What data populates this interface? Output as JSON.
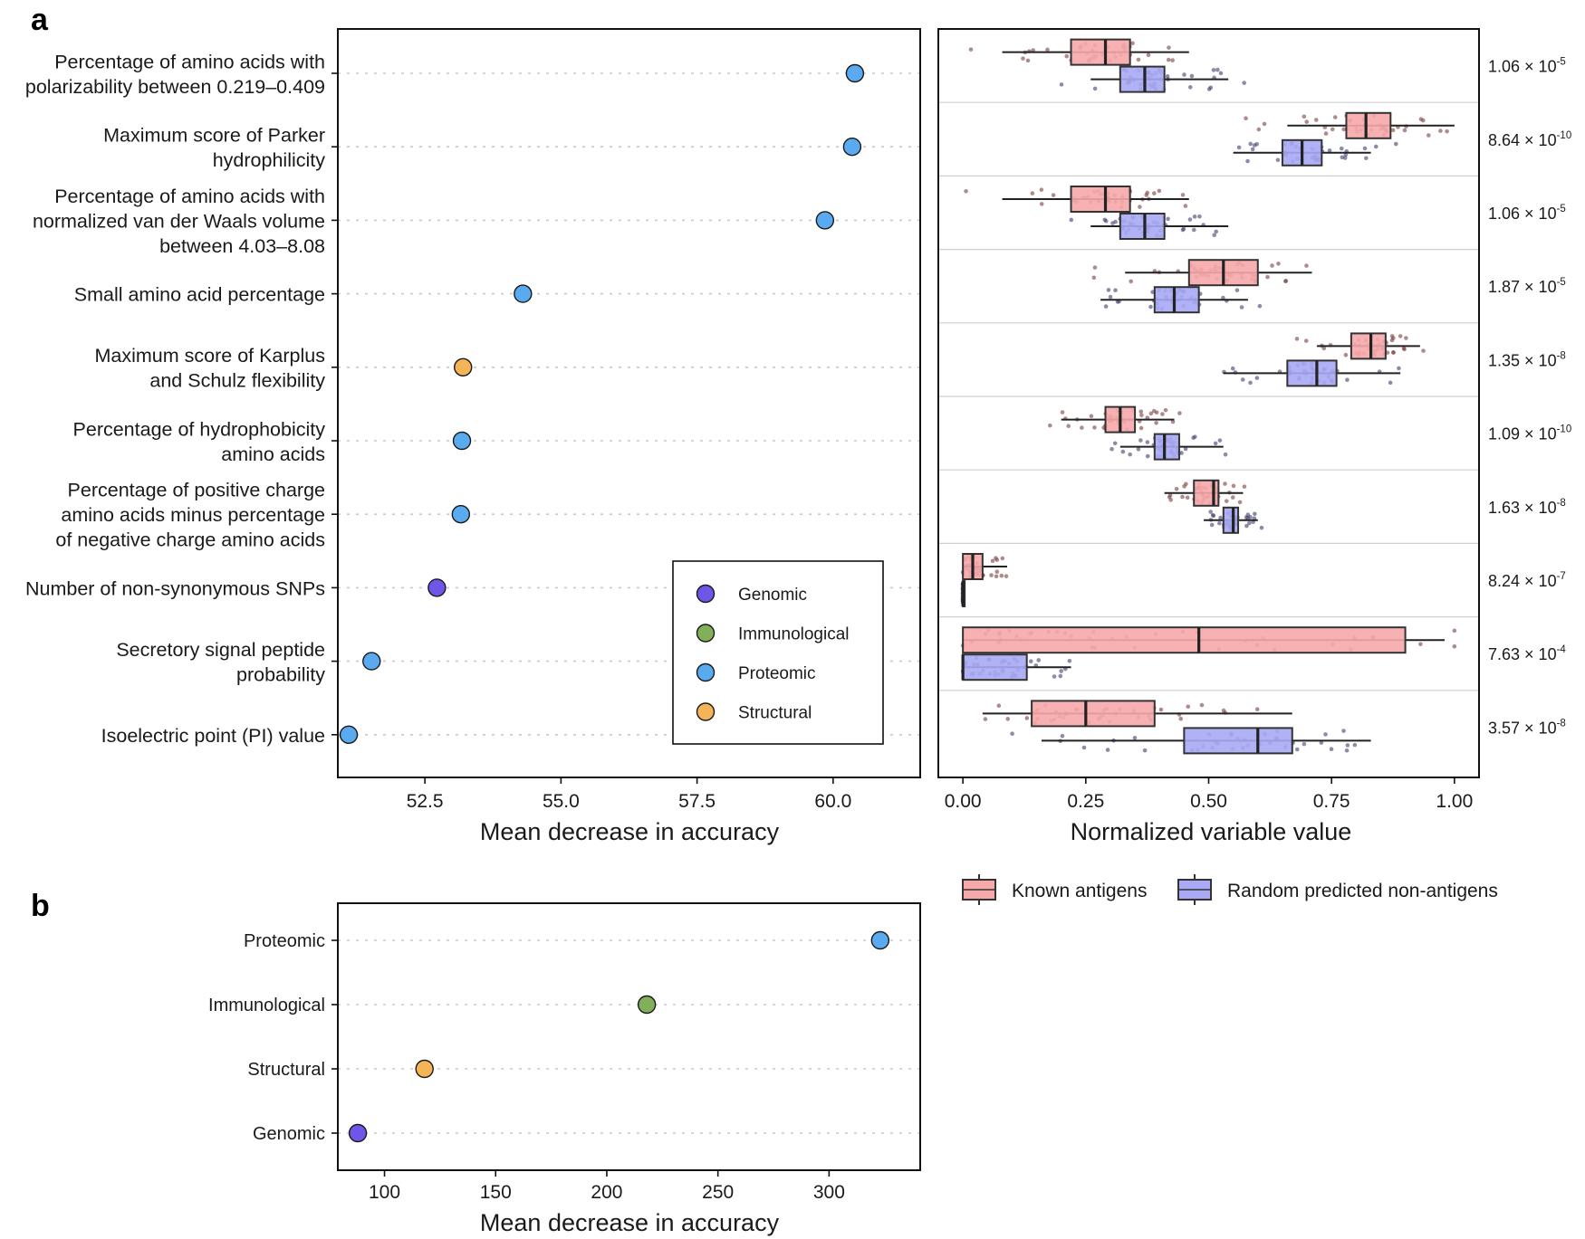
{
  "panels": {
    "a": "a",
    "b": "b"
  },
  "colors": {
    "Genomic": "#6f55e8",
    "Immunological": "#82b05a",
    "Proteomic": "#5aaaf0",
    "Structural": "#f5b457",
    "known_box": "#f7a9aa",
    "random_box": "#a9a9f5",
    "known_dot": "#7a4040",
    "random_dot": "#40406f"
  },
  "chart_data": [
    {
      "id": "a-left",
      "type": "scatter",
      "title": "",
      "xlabel": "Mean decrease in accuracy",
      "ylabel": "",
      "xlim": [
        50.9,
        61.6
      ],
      "xticks": [
        "52.5",
        "55.0",
        "57.5",
        "60.0"
      ],
      "xtick_values": [
        52.5,
        55.0,
        57.5,
        60.0
      ],
      "features": [
        {
          "lines": [
            "Percentage of amino acids with",
            "polarizability between 0.219–0.409"
          ],
          "value": 60.4,
          "category": "Proteomic"
        },
        {
          "lines": [
            "Maximum score of Parker",
            "hydrophilicity"
          ],
          "value": 60.35,
          "category": "Proteomic"
        },
        {
          "lines": [
            "Percentage of amino acids with",
            "normalized van der Waals volume",
            "between 4.03–8.08"
          ],
          "value": 59.85,
          "category": "Proteomic"
        },
        {
          "lines": [
            "Small amino acid percentage"
          ],
          "value": 54.3,
          "category": "Proteomic"
        },
        {
          "lines": [
            "Maximum score of Karplus",
            "and Schulz flexibility"
          ],
          "value": 53.2,
          "category": "Structural"
        },
        {
          "lines": [
            "Percentage of hydrophobicity",
            "amino acids"
          ],
          "value": 53.18,
          "category": "Proteomic"
        },
        {
          "lines": [
            "Percentage of positive charge",
            "amino acids minus percentage",
            "of negative charge amino acids"
          ],
          "value": 53.16,
          "category": "Proteomic"
        },
        {
          "lines": [
            "Number of non-synonymous SNPs"
          ],
          "value": 52.72,
          "category": "Genomic"
        },
        {
          "lines": [
            "Secretory signal peptide",
            "probability"
          ],
          "value": 51.52,
          "category": "Proteomic"
        },
        {
          "lines": [
            "Isoelectric point (PI) value"
          ],
          "value": 51.1,
          "category": "Proteomic"
        }
      ],
      "legend": [
        "Genomic",
        "Immunological",
        "Proteomic",
        "Structural"
      ],
      "legend_position": "bottom-right"
    },
    {
      "id": "a-right",
      "type": "box",
      "xlabel": "Normalized variable value",
      "xlim": [
        -0.05,
        1.05
      ],
      "xticks": [
        "0.00",
        "0.25",
        "0.50",
        "0.75",
        "1.00"
      ],
      "xtick_values": [
        0,
        0.25,
        0.5,
        0.75,
        1.0
      ],
      "legend": [
        "Known antigens",
        "Random predicted non-antigens"
      ],
      "legend_position": "bottom",
      "rows": [
        {
          "p_mantissa": "1.06",
          "p_exp": "-5",
          "known": {
            "whislo": 0.08,
            "q1": 0.22,
            "med": 0.29,
            "q3": 0.34,
            "whishi": 0.46
          },
          "random": {
            "whislo": 0.26,
            "q1": 0.32,
            "med": 0.37,
            "q3": 0.41,
            "whishi": 0.54
          }
        },
        {
          "p_mantissa": "8.64",
          "p_exp": "-10",
          "known": {
            "whislo": 0.66,
            "q1": 0.78,
            "med": 0.82,
            "q3": 0.87,
            "whishi": 1.0
          },
          "random": {
            "whislo": 0.55,
            "q1": 0.65,
            "med": 0.69,
            "q3": 0.73,
            "whishi": 0.83
          }
        },
        {
          "p_mantissa": "1.06",
          "p_exp": "-5",
          "known": {
            "whislo": 0.08,
            "q1": 0.22,
            "med": 0.29,
            "q3": 0.34,
            "whishi": 0.46
          },
          "random": {
            "whislo": 0.26,
            "q1": 0.32,
            "med": 0.37,
            "q3": 0.41,
            "whishi": 0.54
          }
        },
        {
          "p_mantissa": "1.87",
          "p_exp": "-5",
          "known": {
            "whislo": 0.33,
            "q1": 0.46,
            "med": 0.53,
            "q3": 0.6,
            "whishi": 0.71
          },
          "random": {
            "whislo": 0.28,
            "q1": 0.39,
            "med": 0.43,
            "q3": 0.48,
            "whishi": 0.58
          }
        },
        {
          "p_mantissa": "1.35",
          "p_exp": "-8",
          "known": {
            "whislo": 0.72,
            "q1": 0.79,
            "med": 0.83,
            "q3": 0.86,
            "whishi": 0.93
          },
          "random": {
            "whislo": 0.53,
            "q1": 0.66,
            "med": 0.72,
            "q3": 0.76,
            "whishi": 0.89
          }
        },
        {
          "p_mantissa": "1.09",
          "p_exp": "-10",
          "known": {
            "whislo": 0.2,
            "q1": 0.29,
            "med": 0.32,
            "q3": 0.35,
            "whishi": 0.43
          },
          "random": {
            "whislo": 0.32,
            "q1": 0.39,
            "med": 0.41,
            "q3": 0.44,
            "whishi": 0.53
          }
        },
        {
          "p_mantissa": "1.63",
          "p_exp": "-8",
          "known": {
            "whislo": 0.41,
            "q1": 0.47,
            "med": 0.51,
            "q3": 0.52,
            "whishi": 0.57
          },
          "random": {
            "whislo": 0.49,
            "q1": 0.53,
            "med": 0.55,
            "q3": 0.56,
            "whishi": 0.6
          }
        },
        {
          "p_mantissa": "8.24",
          "p_exp": "-7",
          "known": {
            "whislo": 0.0,
            "q1": 0.0,
            "med": 0.02,
            "q3": 0.04,
            "whishi": 0.09
          },
          "random": {
            "whislo": 0.0,
            "q1": 0.0,
            "med": 0.0,
            "q3": 0.0,
            "whishi": 0.0
          }
        },
        {
          "p_mantissa": "7.63",
          "p_exp": "-4",
          "known": {
            "whislo": 0.0,
            "q1": 0.0,
            "med": 0.48,
            "q3": 0.9,
            "whishi": 0.98
          },
          "random": {
            "whislo": 0.0,
            "q1": 0.0,
            "med": 0.0,
            "q3": 0.13,
            "whishi": 0.22
          }
        },
        {
          "p_mantissa": "3.57",
          "p_exp": "-8",
          "known": {
            "whislo": 0.04,
            "q1": 0.14,
            "med": 0.25,
            "q3": 0.39,
            "whishi": 0.67
          },
          "random": {
            "whislo": 0.16,
            "q1": 0.45,
            "med": 0.6,
            "q3": 0.67,
            "whishi": 0.83
          }
        }
      ]
    },
    {
      "id": "b",
      "type": "scatter",
      "xlabel": "Mean decrease in accuracy",
      "xlim": [
        79,
        341
      ],
      "xticks": [
        "100",
        "150",
        "200",
        "250",
        "300"
      ],
      "xtick_values": [
        100,
        150,
        200,
        250,
        300
      ],
      "categories": [
        "Proteomic",
        "Immunological",
        "Structural",
        "Genomic"
      ],
      "values": [
        323,
        218,
        118,
        88
      ]
    }
  ]
}
